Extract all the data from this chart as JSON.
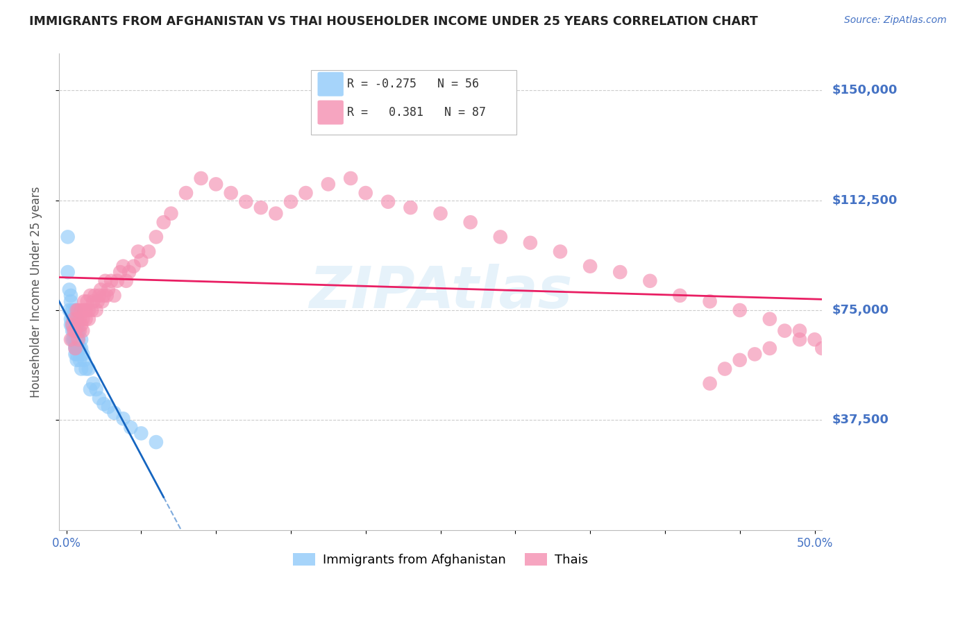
{
  "title": "IMMIGRANTS FROM AFGHANISTAN VS THAI HOUSEHOLDER INCOME UNDER 25 YEARS CORRELATION CHART",
  "source": "Source: ZipAtlas.com",
  "ylabel": "Householder Income Under 25 years",
  "y_tick_labels": [
    "$37,500",
    "$75,000",
    "$112,500",
    "$150,000"
  ],
  "y_tick_values": [
    37500,
    75000,
    112500,
    150000
  ],
  "ylim": [
    0,
    162500
  ],
  "xlim": [
    -0.005,
    0.505
  ],
  "color_afghan": "#90CAF9",
  "color_thai": "#F48FB1",
  "color_afghan_line": "#1565C0",
  "color_thai_line": "#E91E63",
  "color_axis_labels": "#4472C4",
  "watermark": "ZIPAtlas",
  "background_color": "#FFFFFF",
  "grid_color": "#CCCCCC",
  "title_color": "#222222",
  "afghan_x": [
    0.001,
    0.001,
    0.002,
    0.002,
    0.003,
    0.003,
    0.003,
    0.003,
    0.004,
    0.004,
    0.004,
    0.004,
    0.004,
    0.005,
    0.005,
    0.005,
    0.005,
    0.006,
    0.006,
    0.006,
    0.006,
    0.006,
    0.006,
    0.006,
    0.006,
    0.007,
    0.007,
    0.007,
    0.007,
    0.007,
    0.007,
    0.007,
    0.007,
    0.008,
    0.008,
    0.008,
    0.009,
    0.009,
    0.01,
    0.01,
    0.01,
    0.011,
    0.012,
    0.013,
    0.015,
    0.016,
    0.018,
    0.02,
    0.022,
    0.025,
    0.028,
    0.032,
    0.038,
    0.043,
    0.05,
    0.06
  ],
  "afghan_y": [
    100000,
    88000,
    82000,
    75000,
    80000,
    78000,
    72000,
    70000,
    75000,
    73000,
    70000,
    68000,
    65000,
    72000,
    70000,
    68000,
    65000,
    75000,
    72000,
    70000,
    68000,
    65000,
    63000,
    62000,
    60000,
    72000,
    70000,
    68000,
    65000,
    63000,
    62000,
    60000,
    58000,
    68000,
    65000,
    62000,
    62000,
    58000,
    65000,
    62000,
    55000,
    60000,
    58000,
    55000,
    55000,
    48000,
    50000,
    48000,
    45000,
    43000,
    42000,
    40000,
    38000,
    35000,
    33000,
    30000
  ],
  "thai_x": [
    0.003,
    0.004,
    0.005,
    0.005,
    0.006,
    0.006,
    0.007,
    0.007,
    0.008,
    0.008,
    0.009,
    0.009,
    0.01,
    0.01,
    0.011,
    0.011,
    0.012,
    0.012,
    0.013,
    0.013,
    0.014,
    0.015,
    0.015,
    0.016,
    0.017,
    0.018,
    0.019,
    0.02,
    0.021,
    0.022,
    0.023,
    0.024,
    0.025,
    0.026,
    0.027,
    0.028,
    0.03,
    0.032,
    0.034,
    0.036,
    0.038,
    0.04,
    0.042,
    0.045,
    0.048,
    0.05,
    0.055,
    0.06,
    0.065,
    0.07,
    0.08,
    0.09,
    0.1,
    0.11,
    0.12,
    0.13,
    0.14,
    0.15,
    0.16,
    0.175,
    0.19,
    0.2,
    0.215,
    0.23,
    0.25,
    0.27,
    0.29,
    0.31,
    0.33,
    0.35,
    0.37,
    0.39,
    0.41,
    0.43,
    0.45,
    0.47,
    0.49,
    0.5,
    0.505,
    0.51,
    0.49,
    0.48,
    0.47,
    0.46,
    0.45,
    0.44,
    0.43
  ],
  "thai_y": [
    65000,
    70000,
    68000,
    72000,
    62000,
    68000,
    72000,
    75000,
    65000,
    75000,
    68000,
    72000,
    70000,
    75000,
    68000,
    72000,
    75000,
    78000,
    72000,
    75000,
    78000,
    72000,
    75000,
    80000,
    75000,
    78000,
    80000,
    75000,
    78000,
    80000,
    82000,
    78000,
    80000,
    85000,
    80000,
    82000,
    85000,
    80000,
    85000,
    88000,
    90000,
    85000,
    88000,
    90000,
    95000,
    92000,
    95000,
    100000,
    105000,
    108000,
    115000,
    120000,
    118000,
    115000,
    112000,
    110000,
    108000,
    112000,
    115000,
    118000,
    120000,
    115000,
    112000,
    110000,
    108000,
    105000,
    100000,
    98000,
    95000,
    90000,
    88000,
    85000,
    80000,
    78000,
    75000,
    72000,
    68000,
    65000,
    62000,
    60000,
    65000,
    68000,
    62000,
    60000,
    58000,
    55000,
    50000
  ]
}
